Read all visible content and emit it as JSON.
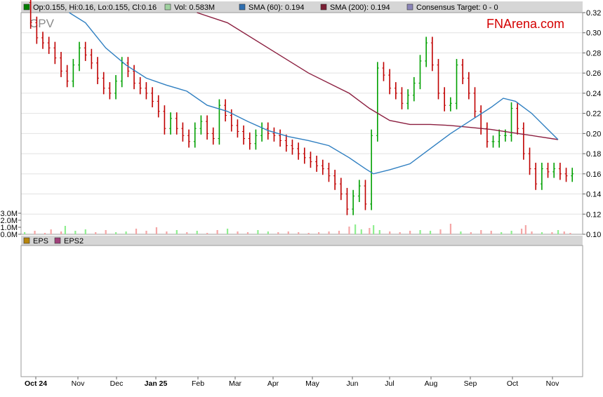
{
  "legend_top": {
    "ohlc_label": "Op:0.155, Hi:0.16, Lo:0.155, Cl:0.16",
    "vol_label": "Vol: 0.583M",
    "sma60_label": "SMA (60): 0.194",
    "sma200_label": "SMA (200): 0.194",
    "consensus_label": "Consensus Target: 0 - 0"
  },
  "legend_bottom": {
    "eps_label": "EPS",
    "eps2_label": "EPS2"
  },
  "ticker": "CPV",
  "brand": "FNArena.com",
  "colors": {
    "up": "#00a000",
    "down": "#c00000",
    "sma60": "#2f7fc1",
    "sma200": "#8b1e3f",
    "vol_up": "#90ee90",
    "vol_down": "#f4a6a6",
    "ohlc_swatch": "#007f00",
    "vol_swatch": "#9fd19f",
    "sma60_swatch": "#2f6fb0",
    "sma200_swatch": "#7a1f35",
    "consensus_swatch": "#8a84b8",
    "eps_swatch": "#b8860b",
    "eps2_swatch": "#a0407a",
    "brand_red": "#d40000"
  },
  "chart_data": {
    "type": "line",
    "price_axis": {
      "ticks": [
        "0.32",
        "0.30",
        "0.28",
        "0.26",
        "0.24",
        "0.22",
        "0.20",
        "0.18",
        "0.16",
        "0.14",
        "0.12",
        "0.10"
      ],
      "ylim": [
        0.1,
        0.32
      ]
    },
    "volume_axis": {
      "ticks": [
        "3.0M",
        "2.0M",
        "1.0M",
        "0.0M"
      ],
      "ylim": [
        0,
        3.0
      ]
    },
    "x_labels": [
      "Oct 24",
      "Nov",
      "Dec",
      "Jan 25",
      "Feb",
      "Mar",
      "Apr",
      "May",
      "Jun",
      "Jul",
      "Aug",
      "Sep",
      "Oct",
      "Nov"
    ],
    "bold_labels": [
      "Oct 24",
      "Jan 25"
    ],
    "close": [
      [
        0,
        0.33
      ],
      [
        3,
        0.31
      ],
      [
        6,
        0.295
      ],
      [
        9,
        0.29
      ],
      [
        12,
        0.285
      ],
      [
        15,
        0.275
      ],
      [
        18,
        0.262
      ],
      [
        21,
        0.252
      ],
      [
        24,
        0.268
      ],
      [
        27,
        0.285
      ],
      [
        30,
        0.278
      ],
      [
        33,
        0.27
      ],
      [
        36,
        0.255
      ],
      [
        39,
        0.245
      ],
      [
        42,
        0.24
      ],
      [
        45,
        0.252
      ],
      [
        48,
        0.27
      ],
      [
        51,
        0.262
      ],
      [
        54,
        0.25
      ],
      [
        57,
        0.245
      ],
      [
        60,
        0.24
      ],
      [
        63,
        0.232
      ],
      [
        66,
        0.222
      ],
      [
        69,
        0.205
      ],
      [
        72,
        0.215
      ],
      [
        75,
        0.205
      ],
      [
        78,
        0.198
      ],
      [
        81,
        0.192
      ],
      [
        84,
        0.205
      ],
      [
        87,
        0.212
      ],
      [
        90,
        0.2
      ],
      [
        93,
        0.195
      ],
      [
        96,
        0.228
      ],
      [
        99,
        0.218
      ],
      [
        102,
        0.208
      ],
      [
        105,
        0.202
      ],
      [
        108,
        0.195
      ],
      [
        111,
        0.19
      ],
      [
        114,
        0.198
      ],
      [
        117,
        0.205
      ],
      [
        120,
        0.2
      ],
      [
        123,
        0.198
      ],
      [
        126,
        0.193
      ],
      [
        129,
        0.188
      ],
      [
        132,
        0.185
      ],
      [
        135,
        0.18
      ],
      [
        138,
        0.176
      ],
      [
        141,
        0.172
      ],
      [
        144,
        0.168
      ],
      [
        147,
        0.165
      ],
      [
        150,
        0.158
      ],
      [
        153,
        0.15
      ],
      [
        156,
        0.14
      ],
      [
        159,
        0.125
      ],
      [
        162,
        0.138
      ],
      [
        165,
        0.148
      ],
      [
        168,
        0.13
      ],
      [
        171,
        0.198
      ],
      [
        174,
        0.265
      ],
      [
        177,
        0.258
      ],
      [
        180,
        0.245
      ],
      [
        183,
        0.24
      ],
      [
        186,
        0.23
      ],
      [
        189,
        0.238
      ],
      [
        192,
        0.25
      ],
      [
        195,
        0.272
      ],
      [
        198,
        0.29
      ],
      [
        201,
        0.268
      ],
      [
        204,
        0.24
      ],
      [
        207,
        0.228
      ],
      [
        210,
        0.23
      ],
      [
        213,
        0.268
      ],
      [
        216,
        0.255
      ],
      [
        219,
        0.24
      ],
      [
        222,
        0.222
      ],
      [
        225,
        0.205
      ],
      [
        228,
        0.192
      ],
      [
        231,
        0.192
      ],
      [
        234,
        0.198
      ],
      [
        237,
        0.198
      ],
      [
        240,
        0.225
      ],
      [
        243,
        0.205
      ],
      [
        246,
        0.18
      ],
      [
        249,
        0.165
      ],
      [
        252,
        0.15
      ],
      [
        255,
        0.165
      ],
      [
        258,
        0.162
      ],
      [
        261,
        0.165
      ],
      [
        264,
        0.16
      ],
      [
        267,
        0.158
      ],
      [
        270,
        0.16
      ]
    ],
    "sma60": [
      [
        22,
        0.33
      ],
      [
        30,
        0.31
      ],
      [
        40,
        0.285
      ],
      [
        50,
        0.268
      ],
      [
        60,
        0.255
      ],
      [
        70,
        0.248
      ],
      [
        80,
        0.242
      ],
      [
        90,
        0.228
      ],
      [
        100,
        0.222
      ],
      [
        110,
        0.212
      ],
      [
        120,
        0.203
      ],
      [
        130,
        0.197
      ],
      [
        140,
        0.193
      ],
      [
        150,
        0.188
      ],
      [
        160,
        0.176
      ],
      [
        168,
        0.165
      ],
      [
        172,
        0.16
      ],
      [
        180,
        0.164
      ],
      [
        190,
        0.17
      ],
      [
        200,
        0.185
      ],
      [
        210,
        0.2
      ],
      [
        220,
        0.213
      ],
      [
        230,
        0.226
      ],
      [
        236,
        0.235
      ],
      [
        242,
        0.232
      ],
      [
        250,
        0.22
      ],
      [
        258,
        0.204
      ],
      [
        263,
        0.194
      ]
    ],
    "sma200": [
      [
        85,
        0.33
      ],
      [
        100,
        0.31
      ],
      [
        120,
        0.285
      ],
      [
        140,
        0.26
      ],
      [
        160,
        0.24
      ],
      [
        170,
        0.225
      ],
      [
        180,
        0.213
      ],
      [
        190,
        0.209
      ],
      [
        200,
        0.209
      ],
      [
        210,
        0.208
      ],
      [
        220,
        0.206
      ],
      [
        230,
        0.204
      ],
      [
        240,
        0.201
      ],
      [
        250,
        0.198
      ],
      [
        263,
        0.194
      ]
    ],
    "volume": [
      [
        0,
        0.3
      ],
      [
        5,
        0.5
      ],
      [
        10,
        0.2
      ],
      [
        13,
        0.7
      ],
      [
        18,
        0.4
      ],
      [
        20,
        1.2
      ],
      [
        25,
        0.5
      ],
      [
        30,
        0.7
      ],
      [
        35,
        0.3
      ],
      [
        40,
        0.6
      ],
      [
        45,
        0.3
      ],
      [
        50,
        0.4
      ],
      [
        55,
        0.8
      ],
      [
        60,
        0.5
      ],
      [
        65,
        1.0
      ],
      [
        70,
        0.4
      ],
      [
        75,
        0.6
      ],
      [
        80,
        0.3
      ],
      [
        85,
        0.5
      ],
      [
        90,
        0.2
      ],
      [
        95,
        0.6
      ],
      [
        100,
        0.8
      ],
      [
        105,
        0.4
      ],
      [
        110,
        0.3
      ],
      [
        115,
        0.6
      ],
      [
        120,
        0.4
      ],
      [
        125,
        0.3
      ],
      [
        130,
        0.4
      ],
      [
        135,
        0.3
      ],
      [
        140,
        0.2
      ],
      [
        145,
        0.3
      ],
      [
        150,
        0.4
      ],
      [
        155,
        0.5
      ],
      [
        160,
        1.1
      ],
      [
        163,
        1.4
      ],
      [
        166,
        0.7
      ],
      [
        170,
        0.9
      ],
      [
        172,
        1.3
      ],
      [
        175,
        0.6
      ],
      [
        180,
        0.4
      ],
      [
        185,
        0.3
      ],
      [
        190,
        0.5
      ],
      [
        195,
        0.6
      ],
      [
        200,
        0.5
      ],
      [
        205,
        0.7
      ],
      [
        210,
        1.5
      ],
      [
        215,
        0.4
      ],
      [
        220,
        0.3
      ],
      [
        225,
        0.6
      ],
      [
        230,
        0.5
      ],
      [
        235,
        0.3
      ],
      [
        240,
        0.5
      ],
      [
        245,
        0.8
      ],
      [
        247,
        1.3
      ],
      [
        250,
        0.4
      ],
      [
        255,
        0.3
      ],
      [
        260,
        0.3
      ],
      [
        263,
        0.6
      ],
      [
        266,
        0.4
      ],
      [
        269,
        0.2
      ]
    ]
  }
}
